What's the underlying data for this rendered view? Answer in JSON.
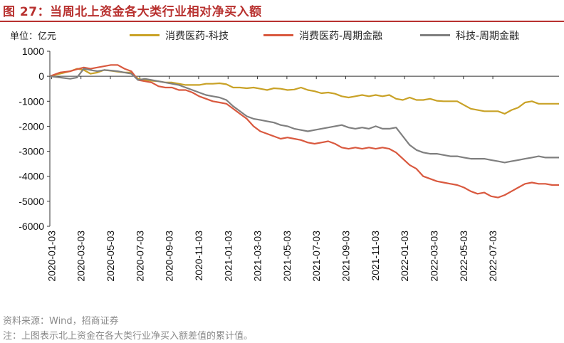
{
  "header": {
    "title": "图 27：当周北上资金各大类行业相对净买入额"
  },
  "unit_label": "单位：亿元",
  "footer": {
    "source": "资料来源：Wind，招商证券",
    "note": "注：上图表示北上资金在各大类行业净买入额差值的累计值。"
  },
  "chart_data": {
    "type": "line",
    "title": "当周北上资金各大类行业相对净买入额",
    "ylabel": "亿元",
    "xlabel": "",
    "ylim": [
      -6000,
      1000
    ],
    "yticks": [
      1000,
      0,
      -1000,
      -2000,
      -3000,
      -4000,
      -5000,
      -6000
    ],
    "ytick_labels": [
      "1000",
      "0",
      "-1000",
      "-2000",
      "-3000",
      "-4000",
      "-5000",
      "-6000"
    ],
    "xtick_labels": [
      "2020-01-03",
      "2020-03-03",
      "2020-05-03",
      "2020-07-03",
      "2020-09-03",
      "2020-11-03",
      "2021-01-03",
      "2021-03-03",
      "2021-05-03",
      "2021-07-03",
      "2021-09-03",
      "2021-11-03",
      "2022-01-03",
      "2022-03-03",
      "2022-05-03",
      "2022-07-03"
    ],
    "x_range_weeks": [
      0,
      141
    ],
    "legend_position": "top",
    "series": [
      {
        "name": "消费医药-科技",
        "color": "#c9a227",
        "points": [
          [
            0,
            0
          ],
          [
            3,
            100
          ],
          [
            6,
            200
          ],
          [
            8,
            300
          ],
          [
            10,
            250
          ],
          [
            12,
            100
          ],
          [
            14,
            150
          ],
          [
            16,
            250
          ],
          [
            18,
            220
          ],
          [
            20,
            180
          ],
          [
            22,
            150
          ],
          [
            24,
            150
          ],
          [
            26,
            -100
          ],
          [
            28,
            -150
          ],
          [
            30,
            -180
          ],
          [
            32,
            -200
          ],
          [
            34,
            -250
          ],
          [
            36,
            -250
          ],
          [
            38,
            -300
          ],
          [
            40,
            -350
          ],
          [
            42,
            -350
          ],
          [
            44,
            -350
          ],
          [
            46,
            -300
          ],
          [
            48,
            -300
          ],
          [
            50,
            -280
          ],
          [
            52,
            -320
          ],
          [
            54,
            -450
          ],
          [
            56,
            -450
          ],
          [
            58,
            -480
          ],
          [
            60,
            -450
          ],
          [
            62,
            -500
          ],
          [
            64,
            -550
          ],
          [
            66,
            -480
          ],
          [
            68,
            -500
          ],
          [
            70,
            -550
          ],
          [
            72,
            -530
          ],
          [
            74,
            -450
          ],
          [
            76,
            -550
          ],
          [
            78,
            -600
          ],
          [
            80,
            -680
          ],
          [
            82,
            -650
          ],
          [
            84,
            -700
          ],
          [
            86,
            -800
          ],
          [
            88,
            -850
          ],
          [
            90,
            -800
          ],
          [
            92,
            -750
          ],
          [
            94,
            -800
          ],
          [
            96,
            -750
          ],
          [
            98,
            -800
          ],
          [
            100,
            -750
          ],
          [
            102,
            -900
          ],
          [
            104,
            -950
          ],
          [
            106,
            -850
          ],
          [
            108,
            -950
          ],
          [
            110,
            -950
          ],
          [
            112,
            -900
          ],
          [
            114,
            -980
          ],
          [
            116,
            -1000
          ],
          [
            118,
            -1000
          ],
          [
            120,
            -1000
          ],
          [
            122,
            -1150
          ],
          [
            124,
            -1300
          ],
          [
            126,
            -1350
          ],
          [
            128,
            -1400
          ],
          [
            130,
            -1400
          ],
          [
            132,
            -1400
          ],
          [
            134,
            -1500
          ],
          [
            136,
            -1350
          ],
          [
            138,
            -1250
          ],
          [
            140,
            -1050
          ],
          [
            142,
            -1000
          ],
          [
            144,
            -1100
          ],
          [
            146,
            -1100
          ],
          [
            148,
            -1100
          ],
          [
            150,
            -1100
          ]
        ]
      },
      {
        "name": "消费医药-周期金融",
        "color": "#d9593f",
        "points": [
          [
            0,
            0
          ],
          [
            3,
            150
          ],
          [
            6,
            200
          ],
          [
            8,
            280
          ],
          [
            10,
            350
          ],
          [
            12,
            300
          ],
          [
            14,
            350
          ],
          [
            16,
            400
          ],
          [
            18,
            450
          ],
          [
            20,
            450
          ],
          [
            22,
            300
          ],
          [
            24,
            200
          ],
          [
            26,
            -150
          ],
          [
            28,
            -200
          ],
          [
            30,
            -250
          ],
          [
            32,
            -400
          ],
          [
            34,
            -450
          ],
          [
            36,
            -450
          ],
          [
            38,
            -550
          ],
          [
            40,
            -550
          ],
          [
            42,
            -650
          ],
          [
            44,
            -800
          ],
          [
            46,
            -900
          ],
          [
            48,
            -1000
          ],
          [
            50,
            -1050
          ],
          [
            52,
            -1100
          ],
          [
            54,
            -1300
          ],
          [
            56,
            -1500
          ],
          [
            58,
            -1700
          ],
          [
            60,
            -2000
          ],
          [
            62,
            -2200
          ],
          [
            64,
            -2300
          ],
          [
            66,
            -2400
          ],
          [
            68,
            -2500
          ],
          [
            70,
            -2450
          ],
          [
            72,
            -2500
          ],
          [
            74,
            -2550
          ],
          [
            76,
            -2650
          ],
          [
            78,
            -2700
          ],
          [
            80,
            -2650
          ],
          [
            82,
            -2600
          ],
          [
            84,
            -2700
          ],
          [
            86,
            -2850
          ],
          [
            88,
            -2900
          ],
          [
            90,
            -2850
          ],
          [
            92,
            -2900
          ],
          [
            94,
            -2850
          ],
          [
            96,
            -2900
          ],
          [
            98,
            -2850
          ],
          [
            100,
            -2900
          ],
          [
            102,
            -3050
          ],
          [
            104,
            -3300
          ],
          [
            106,
            -3550
          ],
          [
            108,
            -3700
          ],
          [
            110,
            -4000
          ],
          [
            112,
            -4100
          ],
          [
            114,
            -4200
          ],
          [
            116,
            -4250
          ],
          [
            118,
            -4300
          ],
          [
            120,
            -4350
          ],
          [
            122,
            -4450
          ],
          [
            124,
            -4600
          ],
          [
            126,
            -4700
          ],
          [
            128,
            -4650
          ],
          [
            130,
            -4800
          ],
          [
            132,
            -4850
          ],
          [
            134,
            -4750
          ],
          [
            136,
            -4600
          ],
          [
            138,
            -4450
          ],
          [
            140,
            -4300
          ],
          [
            142,
            -4250
          ],
          [
            144,
            -4300
          ],
          [
            146,
            -4300
          ],
          [
            148,
            -4350
          ],
          [
            150,
            -4350
          ]
        ]
      },
      {
        "name": "科技-周期金融",
        "color": "#7f7f7f",
        "points": [
          [
            0,
            0
          ],
          [
            3,
            -50
          ],
          [
            6,
            -100
          ],
          [
            8,
            -50
          ],
          [
            10,
            300
          ],
          [
            12,
            250
          ],
          [
            14,
            200
          ],
          [
            16,
            250
          ],
          [
            18,
            230
          ],
          [
            20,
            200
          ],
          [
            22,
            150
          ],
          [
            24,
            100
          ],
          [
            26,
            -150
          ],
          [
            28,
            -100
          ],
          [
            30,
            -150
          ],
          [
            32,
            -200
          ],
          [
            34,
            -250
          ],
          [
            36,
            -300
          ],
          [
            38,
            -350
          ],
          [
            40,
            -450
          ],
          [
            42,
            -550
          ],
          [
            44,
            -650
          ],
          [
            46,
            -750
          ],
          [
            48,
            -800
          ],
          [
            50,
            -850
          ],
          [
            52,
            -950
          ],
          [
            54,
            -1200
          ],
          [
            56,
            -1400
          ],
          [
            58,
            -1600
          ],
          [
            60,
            -1700
          ],
          [
            62,
            -1750
          ],
          [
            64,
            -1800
          ],
          [
            66,
            -1850
          ],
          [
            68,
            -1950
          ],
          [
            70,
            -2000
          ],
          [
            72,
            -2100
          ],
          [
            74,
            -2150
          ],
          [
            76,
            -2200
          ],
          [
            78,
            -2150
          ],
          [
            80,
            -2100
          ],
          [
            82,
            -2050
          ],
          [
            84,
            -2000
          ],
          [
            86,
            -1950
          ],
          [
            88,
            -2050
          ],
          [
            90,
            -2100
          ],
          [
            92,
            -2050
          ],
          [
            94,
            -2100
          ],
          [
            96,
            -2000
          ],
          [
            98,
            -2100
          ],
          [
            100,
            -2100
          ],
          [
            102,
            -2050
          ],
          [
            104,
            -2400
          ],
          [
            106,
            -2750
          ],
          [
            108,
            -2950
          ],
          [
            110,
            -3050
          ],
          [
            112,
            -3100
          ],
          [
            114,
            -3100
          ],
          [
            116,
            -3150
          ],
          [
            118,
            -3200
          ],
          [
            120,
            -3200
          ],
          [
            122,
            -3250
          ],
          [
            124,
            -3300
          ],
          [
            126,
            -3300
          ],
          [
            128,
            -3300
          ],
          [
            130,
            -3350
          ],
          [
            132,
            -3400
          ],
          [
            134,
            -3450
          ],
          [
            136,
            -3400
          ],
          [
            138,
            -3350
          ],
          [
            140,
            -3300
          ],
          [
            142,
            -3250
          ],
          [
            144,
            -3200
          ],
          [
            146,
            -3250
          ],
          [
            148,
            -3250
          ],
          [
            150,
            -3250
          ]
        ]
      }
    ]
  }
}
